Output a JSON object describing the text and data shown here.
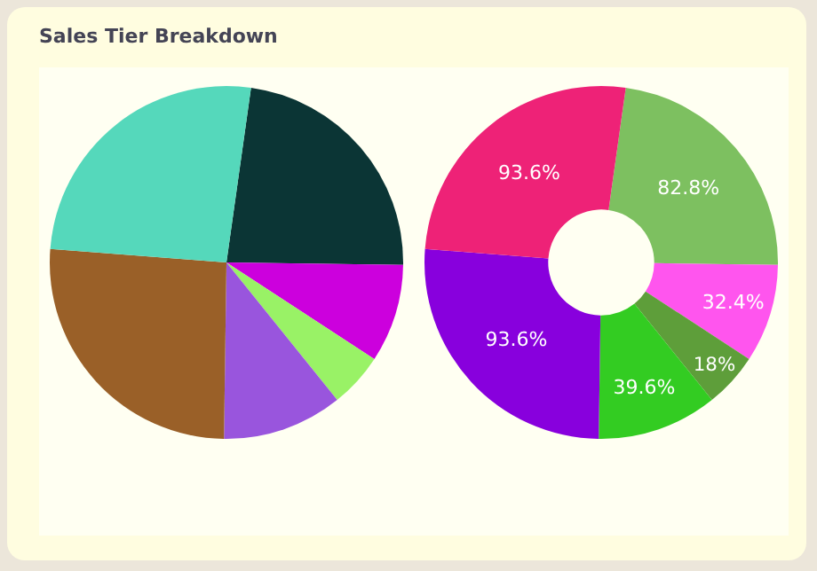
{
  "chart_data": [
    {
      "type": "pie",
      "title": "Sales Tier Breakdown",
      "categories": [
        null,
        null,
        null,
        null,
        null,
        null
      ],
      "values": [
        23,
        9,
        5,
        11,
        26,
        26
      ],
      "colors": [
        "#0b3535",
        "#cc00dd",
        "#99f266",
        "#9955dd",
        "#9a6028",
        "#55d8bb"
      ],
      "legend": false
    },
    {
      "type": "donut",
      "categories": [
        null,
        null,
        null,
        null,
        null,
        null
      ],
      "values": [
        82.8,
        32.4,
        18,
        39.6,
        93.6,
        93.6
      ],
      "value_labels": [
        "82.8%",
        "32.4%",
        "18%",
        "39.6%",
        "93.6%",
        "93.6%"
      ],
      "colors": [
        "#7dc060",
        "#ff55ee",
        "#5e9e3a",
        "#33cc22",
        "#8800dd",
        "#ee2277"
      ],
      "legend": false
    }
  ]
}
